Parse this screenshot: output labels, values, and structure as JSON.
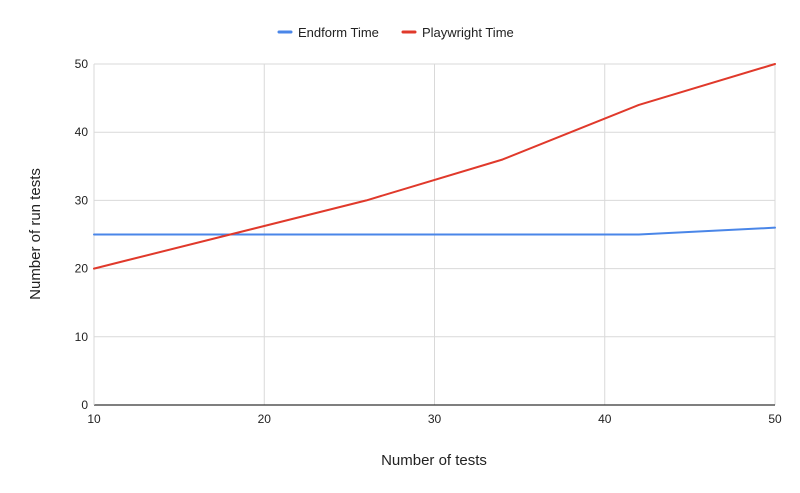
{
  "chart_data": {
    "type": "line",
    "xlabel": "Number of tests",
    "ylabel": "Number of run tests",
    "xlim": [
      10,
      50
    ],
    "ylim": [
      0,
      50
    ],
    "x_ticks": [
      "10",
      "20",
      "30",
      "40",
      "50"
    ],
    "y_ticks": [
      "0",
      "10",
      "20",
      "30",
      "40",
      "50"
    ],
    "grid": true,
    "legend_position": "top",
    "series": [
      {
        "name": "Endform Time",
        "color": "#4a86e8",
        "x": [
          10,
          18,
          26,
          34,
          42,
          50
        ],
        "values": [
          25,
          25,
          25,
          25,
          25,
          26
        ]
      },
      {
        "name": "Playwright Time",
        "color": "#e0392b",
        "x": [
          10,
          18,
          26,
          34,
          42,
          50
        ],
        "values": [
          20,
          25,
          30,
          36,
          44,
          50
        ]
      }
    ]
  }
}
